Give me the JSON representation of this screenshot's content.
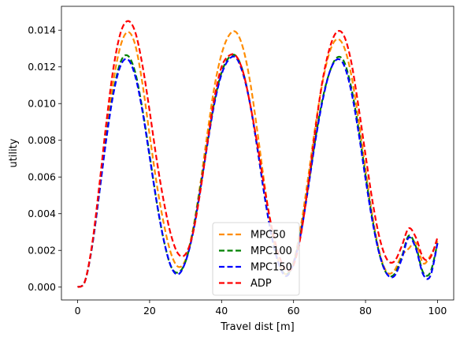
{
  "chart_data": {
    "type": "line",
    "title": "",
    "xlabel": "Travel dist [m]",
    "ylabel": "utility",
    "xlim": [
      -4.5,
      104.5
    ],
    "ylim": [
      -0.0007,
      0.0153
    ],
    "xticks": [
      0,
      20,
      40,
      60,
      80,
      100
    ],
    "xtick_labels": [
      "0",
      "20",
      "40",
      "60",
      "80",
      "100"
    ],
    "yticks": [
      0.0,
      0.002,
      0.004,
      0.006,
      0.008,
      0.01,
      0.012,
      0.014
    ],
    "ytick_labels": [
      "0.000",
      "0.002",
      "0.004",
      "0.006",
      "0.008",
      "0.010",
      "0.012",
      "0.014"
    ],
    "grid": false,
    "legend_position": "bottom-center",
    "x": [
      0,
      2,
      4,
      6,
      8,
      10,
      12,
      14,
      16,
      18,
      20,
      22,
      24,
      26,
      28,
      30,
      32,
      34,
      36,
      38,
      40,
      42,
      44,
      46,
      48,
      50,
      52,
      54,
      56,
      58,
      60,
      62,
      64,
      66,
      68,
      70,
      72,
      74,
      76,
      78,
      80,
      82,
      84,
      86,
      88,
      90,
      92,
      94,
      96,
      98,
      100
    ],
    "series": [
      {
        "name": "MPC50",
        "color": "#ff8c00",
        "values": [
          0.0,
          0.0003,
          0.0022,
          0.0052,
          0.0085,
          0.0113,
          0.0132,
          0.0139,
          0.0132,
          0.0111,
          0.0083,
          0.0056,
          0.0034,
          0.0018,
          0.0011,
          0.0015,
          0.0031,
          0.0055,
          0.0083,
          0.0109,
          0.0127,
          0.0137,
          0.0139,
          0.013,
          0.0111,
          0.0084,
          0.0055,
          0.003,
          0.0013,
          0.0007,
          0.0014,
          0.0033,
          0.0059,
          0.0087,
          0.0111,
          0.0128,
          0.0135,
          0.0131,
          0.0116,
          0.0092,
          0.0064,
          0.0038,
          0.0018,
          0.0008,
          0.0009,
          0.0017,
          0.0021,
          0.0024,
          0.0013,
          0.0017,
          0.0025
        ]
      },
      {
        "name": "MPC100",
        "color": "#008000",
        "values": [
          0.0,
          0.0003,
          0.0022,
          0.0051,
          0.0082,
          0.0107,
          0.0123,
          0.0126,
          0.0117,
          0.0097,
          0.0072,
          0.0046,
          0.0025,
          0.0011,
          0.0008,
          0.0014,
          0.003,
          0.0053,
          0.0078,
          0.0101,
          0.0117,
          0.0125,
          0.0126,
          0.0117,
          0.0099,
          0.0075,
          0.0049,
          0.0027,
          0.0012,
          0.0007,
          0.0013,
          0.003,
          0.0054,
          0.008,
          0.0102,
          0.0117,
          0.0125,
          0.0123,
          0.0109,
          0.0087,
          0.0061,
          0.0036,
          0.0017,
          0.0007,
          0.0007,
          0.0016,
          0.0028,
          0.0022,
          0.0008,
          0.0008,
          0.0024
        ]
      },
      {
        "name": "MPC150",
        "color": "#0000ff",
        "values": [
          0.0,
          0.0003,
          0.0022,
          0.0051,
          0.0081,
          0.0106,
          0.0121,
          0.0124,
          0.0115,
          0.0096,
          0.0071,
          0.0046,
          0.0025,
          0.0011,
          0.0007,
          0.0014,
          0.0029,
          0.0052,
          0.0077,
          0.01,
          0.0116,
          0.0124,
          0.0125,
          0.0116,
          0.0099,
          0.0075,
          0.0049,
          0.0027,
          0.0012,
          0.0006,
          0.0013,
          0.0029,
          0.0053,
          0.0079,
          0.0101,
          0.0117,
          0.0124,
          0.0121,
          0.0107,
          0.0085,
          0.0059,
          0.0035,
          0.0017,
          0.0007,
          0.0006,
          0.0015,
          0.0027,
          0.0021,
          0.0007,
          0.0006,
          0.0024
        ]
      },
      {
        "name": "ADP",
        "color": "#ff0000",
        "values": [
          0.0,
          0.0003,
          0.0023,
          0.0055,
          0.009,
          0.012,
          0.0139,
          0.0145,
          0.0139,
          0.0121,
          0.0096,
          0.0069,
          0.0046,
          0.0028,
          0.0018,
          0.0018,
          0.0029,
          0.0051,
          0.0078,
          0.0103,
          0.012,
          0.0126,
          0.0126,
          0.0117,
          0.0099,
          0.0077,
          0.0053,
          0.0032,
          0.0017,
          0.0009,
          0.0012,
          0.0028,
          0.0055,
          0.0085,
          0.0112,
          0.013,
          0.0139,
          0.0137,
          0.0123,
          0.0099,
          0.0072,
          0.0046,
          0.0026,
          0.0015,
          0.0014,
          0.0022,
          0.0032,
          0.0027,
          0.0016,
          0.0016,
          0.0027
        ]
      }
    ]
  }
}
